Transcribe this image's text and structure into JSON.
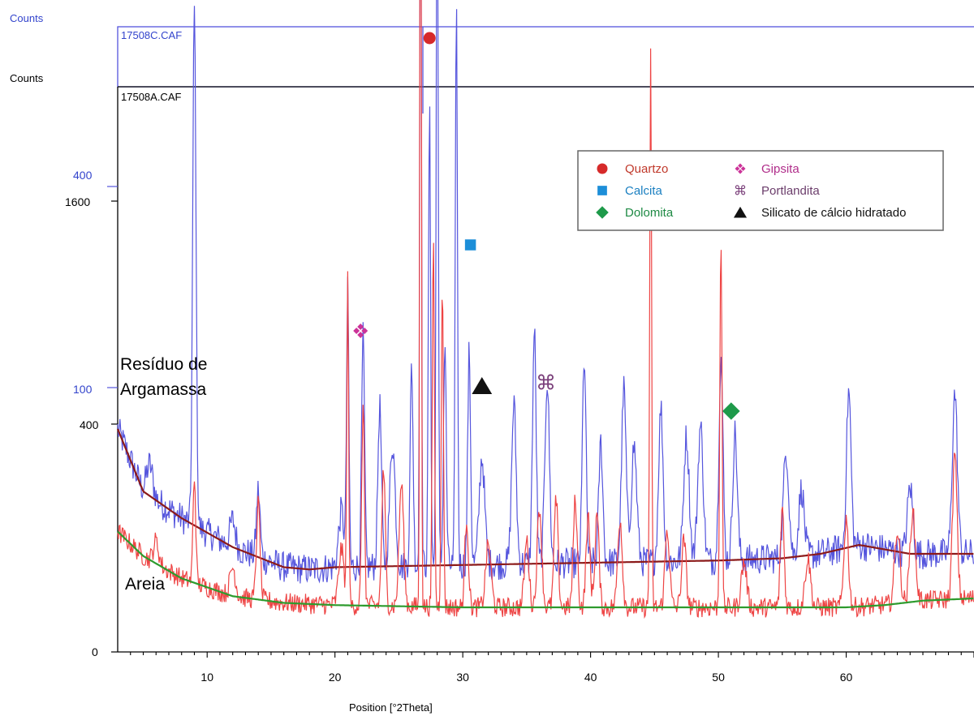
{
  "chart_data": {
    "type": "line",
    "xlabel": "Position [°2Theta]",
    "x_range": [
      3,
      70
    ],
    "x_ticks": [
      10,
      20,
      30,
      40,
      50,
      60
    ],
    "axis_labels": {
      "outer": "Counts",
      "inner": "Counts"
    },
    "files": {
      "top": "17508C.CAF",
      "bottom": "17508A.CAF"
    },
    "y_ticks_black": [
      {
        "label": "1600",
        "value": 1600
      },
      {
        "label": "400",
        "value": 400
      },
      {
        "label": "0",
        "value": 0
      }
    ],
    "y_ticks_blue": [
      {
        "label": "400",
        "value": 400
      },
      {
        "label": "100",
        "value": 100
      }
    ],
    "series_labels": {
      "residuo_line1": "Resíduo  de",
      "residuo_line2": "Argamassa",
      "areia": "Areia"
    },
    "series": [
      {
        "id": "residuo",
        "color": "#5555dd",
        "baseline_color": "#8b1a1a",
        "background": [
          [
            3,
            100
          ],
          [
            5,
            72
          ],
          [
            8,
            60
          ],
          [
            12,
            47
          ],
          [
            16,
            38
          ],
          [
            18,
            37
          ],
          [
            20,
            38
          ],
          [
            30,
            39
          ],
          [
            40,
            40
          ],
          [
            50,
            41
          ],
          [
            55,
            42
          ],
          [
            58,
            44
          ],
          [
            61,
            48
          ],
          [
            65,
            44
          ],
          [
            70,
            44
          ]
        ],
        "peaks": [
          [
            5.5,
            14,
            0.35
          ],
          [
            9,
            232,
            0.18
          ],
          [
            12,
            12,
            0.3
          ],
          [
            14,
            30,
            0.2
          ],
          [
            20.5,
            25,
            0.3
          ],
          [
            21,
            122,
            0.13
          ],
          [
            22.2,
            103,
            0.16
          ],
          [
            23.5,
            72,
            0.2
          ],
          [
            24.5,
            55,
            0.3
          ],
          [
            26,
            90,
            0.16
          ],
          [
            26.7,
            374,
            0.09
          ],
          [
            27.4,
            205,
            0.12
          ],
          [
            28,
            340,
            0.11
          ],
          [
            28.6,
            100,
            0.15
          ],
          [
            29.5,
            255,
            0.12
          ],
          [
            30.5,
            95,
            0.16
          ],
          [
            31.5,
            48,
            0.3
          ],
          [
            34,
            72,
            0.25
          ],
          [
            35.6,
            104,
            0.2
          ],
          [
            36.6,
            82,
            0.25
          ],
          [
            39.5,
            92,
            0.2
          ],
          [
            40.8,
            54,
            0.22
          ],
          [
            42.6,
            78,
            0.25
          ],
          [
            43.4,
            52,
            0.3
          ],
          [
            45.5,
            69,
            0.25
          ],
          [
            47.5,
            56,
            0.3
          ],
          [
            48.6,
            60,
            0.3
          ],
          [
            50.2,
            91,
            0.22
          ],
          [
            51.3,
            57,
            0.25
          ],
          [
            55.3,
            48,
            0.3
          ],
          [
            56.5,
            30,
            0.3
          ],
          [
            60.2,
            70,
            0.25
          ],
          [
            65,
            30,
            0.3
          ],
          [
            68.5,
            72,
            0.28
          ]
        ]
      },
      {
        "id": "areia",
        "color": "#ee4444",
        "baseline_color": "#2d9b2d",
        "background": [
          [
            3,
            54
          ],
          [
            5,
            43
          ],
          [
            8,
            33
          ],
          [
            12,
            25
          ],
          [
            16,
            22
          ],
          [
            20,
            21
          ],
          [
            30,
            20
          ],
          [
            40,
            20
          ],
          [
            50,
            20
          ],
          [
            60,
            20
          ],
          [
            63,
            21
          ],
          [
            66,
            23
          ],
          [
            70,
            24
          ]
        ],
        "peaks": [
          [
            6,
            10,
            0.3
          ],
          [
            9,
            48,
            0.15
          ],
          [
            12,
            13,
            0.3
          ],
          [
            14,
            43,
            0.2
          ],
          [
            20.5,
            25,
            0.3
          ],
          [
            21,
            145,
            0.1
          ],
          [
            22.2,
            90,
            0.15
          ],
          [
            23.8,
            60,
            0.2
          ],
          [
            25.2,
            55,
            0.25
          ],
          [
            26.7,
            470,
            0.08
          ],
          [
            27.7,
            165,
            0.12
          ],
          [
            28.4,
            145,
            0.12
          ],
          [
            30.3,
            40,
            0.2
          ],
          [
            32,
            28,
            0.3
          ],
          [
            35,
            30,
            0.25
          ],
          [
            36,
            45,
            0.25
          ],
          [
            37.3,
            48,
            0.22
          ],
          [
            38.8,
            48,
            0.22
          ],
          [
            39.8,
            40,
            0.22
          ],
          [
            40.5,
            42,
            0.22
          ],
          [
            42.3,
            40,
            0.25
          ],
          [
            44.7,
            250,
            0.1
          ],
          [
            46,
            35,
            0.25
          ],
          [
            47.3,
            30,
            0.25
          ],
          [
            50.2,
            168,
            0.12
          ],
          [
            52,
            20,
            0.3
          ],
          [
            55,
            45,
            0.2
          ],
          [
            57,
            22,
            0.3
          ],
          [
            60,
            40,
            0.25
          ],
          [
            64,
            33,
            0.3
          ],
          [
            65.2,
            40,
            0.3
          ],
          [
            68.5,
            65,
            0.25
          ]
        ]
      }
    ],
    "legend": {
      "position": "top-right",
      "items": [
        {
          "label": "Quartzo",
          "symbol": "circle",
          "color": "#d62a2a",
          "text_color": "#c0392b"
        },
        {
          "label": "Calcita",
          "symbol": "square",
          "color": "#1c8ed8",
          "text_color": "#1a7fc1"
        },
        {
          "label": "Dolomita",
          "symbol": "diamond",
          "color": "#1e9a4a",
          "text_color": "#1e8a44"
        },
        {
          "label": "Gipsita",
          "symbol": "quad",
          "color": "#cc3399",
          "text_color": "#b02d8a"
        },
        {
          "label": "Portlandita",
          "symbol": "command",
          "color": "#7a3f7a",
          "text_color": "#6b3d6b"
        },
        {
          "label": "Silicato de cálcio hidratado",
          "symbol": "triangle",
          "color": "#111111",
          "text_color": "#111111"
        }
      ]
    },
    "markers": [
      {
        "symbol": "circle",
        "color": "#d62a2a",
        "x": 27.4
      },
      {
        "symbol": "square",
        "color": "#1c8ed8",
        "x": 30.6
      },
      {
        "symbol": "quad",
        "color": "#cc3399",
        "x": 22
      },
      {
        "symbol": "triangle",
        "color": "#111111",
        "x": 31.5
      },
      {
        "symbol": "command",
        "color": "#7a3f7a",
        "x": 36.5
      },
      {
        "symbol": "diamond",
        "color": "#1e9a4a",
        "x": 51
      }
    ]
  }
}
